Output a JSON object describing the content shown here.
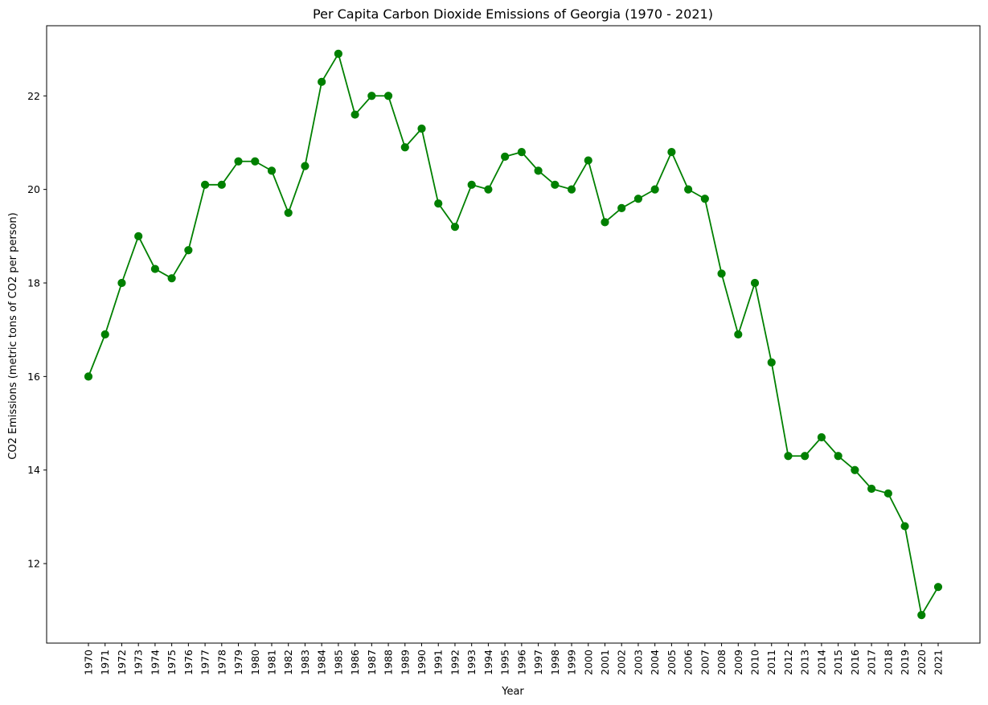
{
  "chart_data": {
    "type": "line",
    "title": "Per Capita Carbon Dioxide Emissions of Georgia (1970 - 2021)",
    "xlabel": "Year",
    "ylabel": "CO2 Emissions (metric tons of CO2 per person)",
    "x": [
      "1970",
      "1971",
      "1972",
      "1973",
      "1974",
      "1975",
      "1976",
      "1977",
      "1978",
      "1979",
      "1980",
      "1981",
      "1982",
      "1983",
      "1984",
      "1985",
      "1986",
      "1987",
      "1988",
      "1989",
      "1990",
      "1991",
      "1992",
      "1993",
      "1994",
      "1995",
      "1996",
      "1997",
      "1998",
      "1999",
      "2000",
      "2001",
      "2002",
      "2003",
      "2004",
      "2005",
      "2006",
      "2007",
      "2008",
      "2009",
      "2010",
      "2011",
      "2012",
      "2013",
      "2014",
      "2015",
      "2016",
      "2017",
      "2018",
      "2019",
      "2020",
      "2021"
    ],
    "series": [
      {
        "color": "#008000",
        "marker": "circle",
        "values": [
          16.0,
          16.9,
          18.0,
          19.0,
          18.3,
          18.1,
          18.7,
          20.1,
          20.1,
          20.6,
          20.6,
          20.4,
          19.5,
          20.5,
          22.3,
          22.9,
          21.6,
          22.0,
          22.0,
          20.9,
          21.3,
          19.7,
          19.2,
          20.1,
          20.0,
          20.7,
          20.8,
          20.4,
          20.1,
          20.0,
          20.62,
          19.3,
          19.6,
          19.8,
          20.0,
          20.8,
          20.0,
          19.8,
          18.2,
          16.9,
          18.0,
          16.3,
          14.3,
          14.3,
          14.7,
          14.3,
          14.0,
          13.6,
          13.5,
          12.8,
          10.9,
          11.5
        ]
      }
    ],
    "yticks": [
      12,
      14,
      16,
      18,
      20,
      22
    ],
    "ylim": [
      10.3,
      23.5
    ],
    "xtick_rotation": 90,
    "grid": false,
    "legend": "none"
  }
}
